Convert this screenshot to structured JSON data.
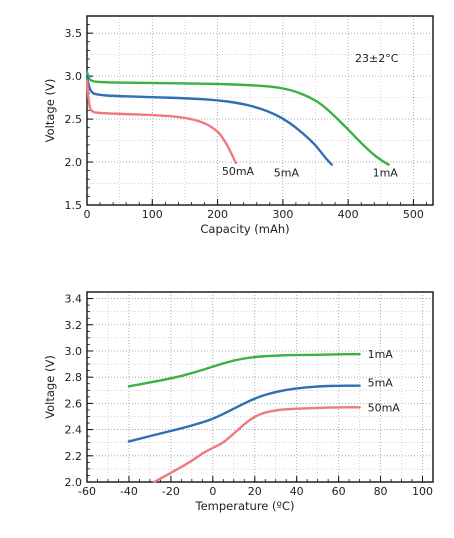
{
  "chart_data": [
    {
      "type": "line",
      "xlabel": "Capacity (mAh)",
      "ylabel": "Voltage (V)",
      "xlim": [
        0,
        530
      ],
      "ylim": [
        1.5,
        3.7
      ],
      "x_ticks": [
        0,
        100,
        200,
        300,
        400,
        500
      ],
      "y_ticks": [
        1.5,
        2.0,
        2.5,
        3.0,
        3.5
      ],
      "grid": true,
      "annotations": [
        "23±2°C"
      ],
      "series": [
        {
          "name": "1mA",
          "color": "#3db13d",
          "x": [
            0,
            3,
            8,
            20,
            50,
            100,
            150,
            200,
            250,
            280,
            300,
            320,
            340,
            360,
            380,
            400,
            420,
            440,
            455,
            462
          ],
          "y": [
            3.05,
            2.97,
            2.94,
            2.93,
            2.925,
            2.92,
            2.915,
            2.91,
            2.895,
            2.88,
            2.86,
            2.82,
            2.76,
            2.67,
            2.53,
            2.38,
            2.22,
            2.08,
            2.0,
            1.97
          ]
        },
        {
          "name": "5mA",
          "color": "#2f6fb5",
          "x": [
            0,
            3,
            8,
            20,
            40,
            80,
            120,
            160,
            200,
            230,
            260,
            290,
            310,
            330,
            350,
            365,
            375
          ],
          "y": [
            3.0,
            2.87,
            2.8,
            2.78,
            2.77,
            2.76,
            2.75,
            2.74,
            2.72,
            2.69,
            2.64,
            2.55,
            2.46,
            2.34,
            2.2,
            2.05,
            1.97
          ]
        },
        {
          "name": "50mA",
          "color": "#ef7a7e",
          "x": [
            0,
            3,
            8,
            20,
            50,
            100,
            150,
            180,
            200,
            210,
            220,
            228
          ],
          "y": [
            2.95,
            2.65,
            2.58,
            2.57,
            2.56,
            2.55,
            2.52,
            2.46,
            2.36,
            2.26,
            2.12,
            1.99
          ]
        }
      ]
    },
    {
      "type": "line",
      "xlabel": "Temperature (ºC)",
      "ylabel": "Voltage (V)",
      "xlim": [
        -60,
        105
      ],
      "ylim": [
        2.0,
        3.45
      ],
      "x_ticks": [
        -60,
        -40,
        -20,
        0,
        20,
        40,
        60,
        80,
        100
      ],
      "y_ticks": [
        2.0,
        2.2,
        2.4,
        2.6,
        2.8,
        3.0,
        3.2,
        3.4
      ],
      "grid": true,
      "series": [
        {
          "name": "1mA",
          "color": "#3db13d",
          "x": [
            -40,
            -30,
            -20,
            -10,
            0,
            10,
            20,
            30,
            40,
            50,
            60,
            70
          ],
          "y": [
            2.73,
            2.76,
            2.79,
            2.83,
            2.88,
            2.93,
            2.955,
            2.965,
            2.97,
            2.97,
            2.975,
            2.975
          ]
        },
        {
          "name": "5mA",
          "color": "#2f6fb5",
          "x": [
            -40,
            -30,
            -20,
            -10,
            0,
            10,
            20,
            30,
            40,
            50,
            60,
            70
          ],
          "y": [
            2.31,
            2.35,
            2.39,
            2.43,
            2.48,
            2.56,
            2.64,
            2.69,
            2.715,
            2.73,
            2.735,
            2.735
          ]
        },
        {
          "name": "50mA",
          "color": "#ef7a7e",
          "x": [
            -28,
            -20,
            -10,
            -5,
            0,
            5,
            10,
            20,
            30,
            40,
            50,
            60,
            70
          ],
          "y": [
            2.0,
            2.07,
            2.16,
            2.22,
            2.26,
            2.3,
            2.37,
            2.51,
            2.55,
            2.56,
            2.565,
            2.57,
            2.57
          ]
        }
      ]
    }
  ]
}
